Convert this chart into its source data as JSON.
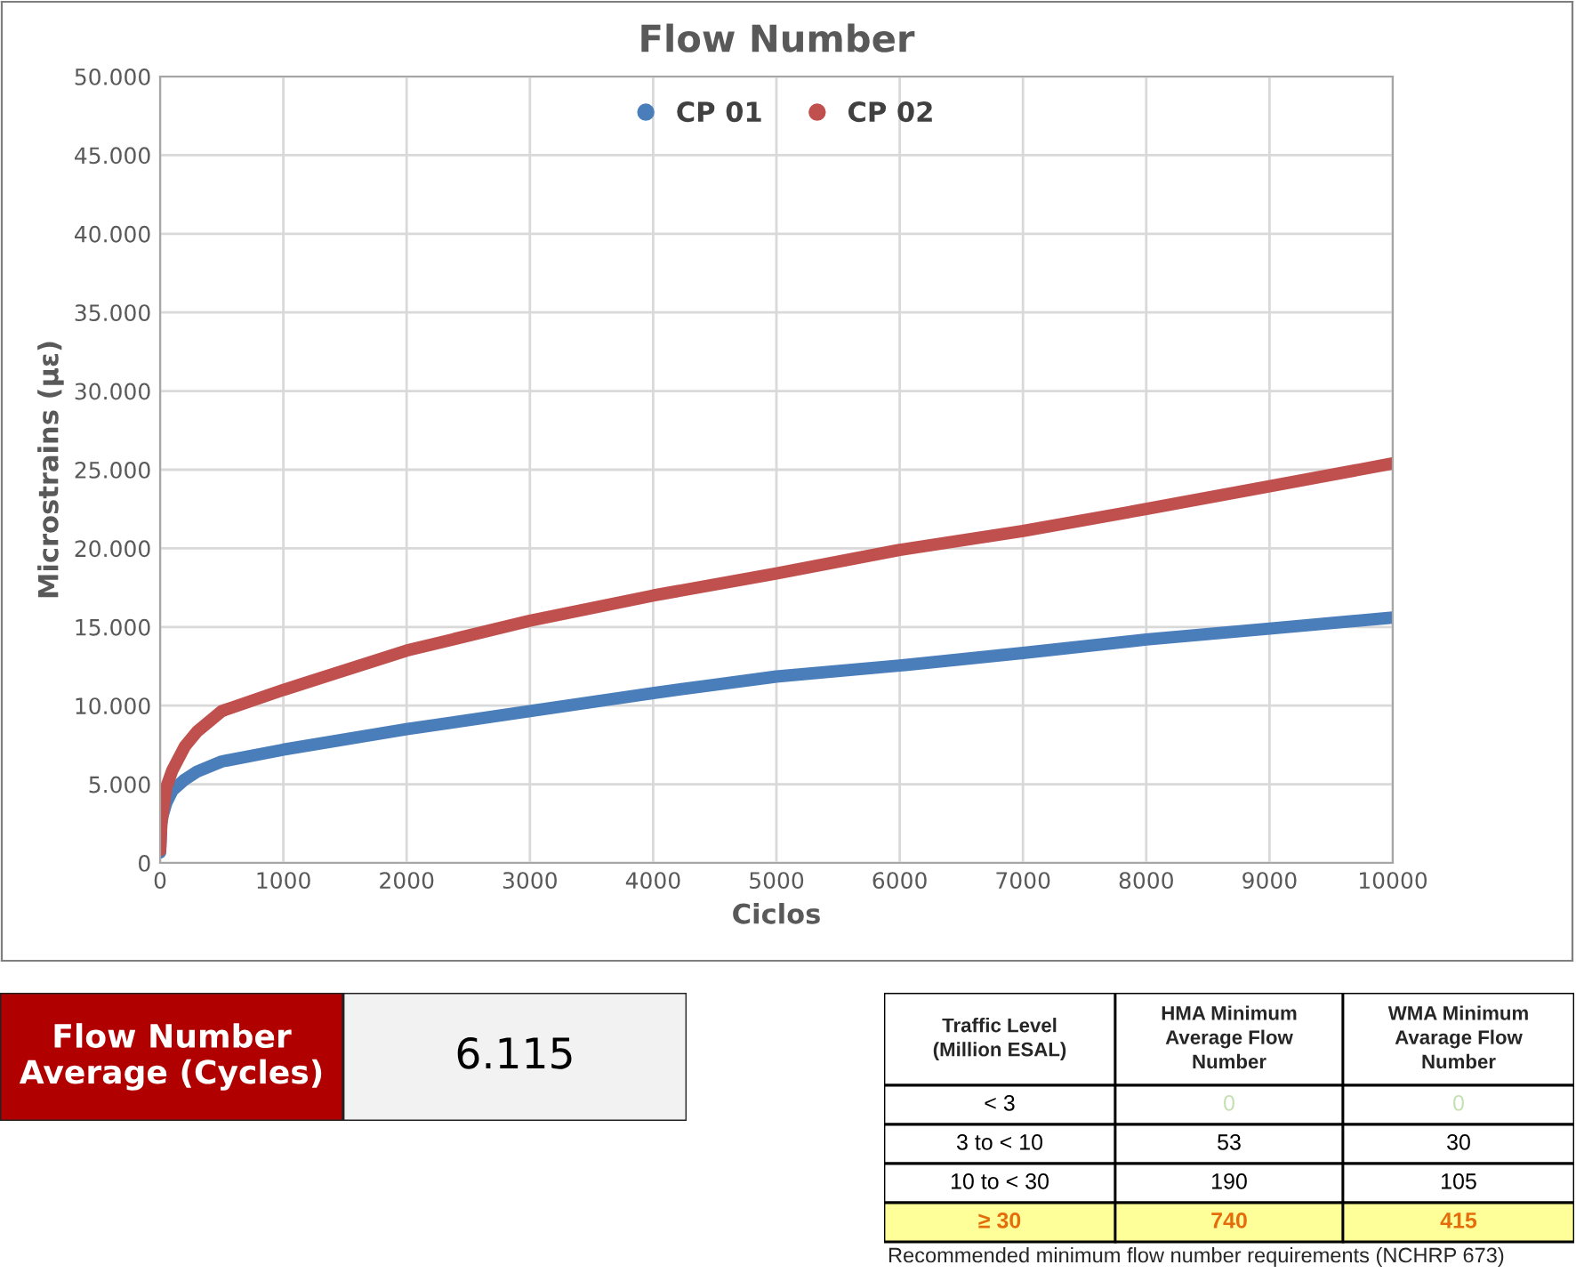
{
  "chart_data": [
    {
      "type": "line",
      "title": "Flow Number",
      "xlabel": "Ciclos",
      "ylabel": "Microstrains (με)",
      "xlim": [
        0,
        10000
      ],
      "xticks": [
        0,
        1000,
        2000,
        3000,
        4000,
        5000,
        6000,
        7000,
        8000,
        9000,
        10000
      ],
      "ylim": [
        0,
        50000
      ],
      "yticks": [
        0,
        {
          "value": 5000,
          "label": "5.000"
        },
        {
          "value": 10000,
          "label": "10.000"
        },
        {
          "value": 15000,
          "label": "15.000"
        },
        {
          "value": 20000,
          "label": "20.000"
        },
        {
          "value": 25000,
          "label": "25.000"
        },
        {
          "value": 30000,
          "label": "30.000"
        },
        {
          "value": 35000,
          "label": "35.000"
        },
        {
          "value": 40000,
          "label": "40.000"
        },
        {
          "value": 45000,
          "label": "45.000"
        },
        {
          "value": 50000,
          "label": "50.000"
        }
      ],
      "grid": true,
      "legend": "top",
      "series": [
        {
          "name": "CP 01",
          "color": "#4a7ebb",
          "x": [
            0,
            10,
            20,
            50,
            100,
            200,
            300,
            500,
            1000,
            2000,
            3000,
            4000,
            5000,
            6000,
            7000,
            8000,
            9000,
            10000
          ],
          "values": [
            650,
            2500,
            3000,
            3800,
            4600,
            5300,
            5800,
            6450,
            7200,
            8500,
            9650,
            10800,
            11850,
            12550,
            13350,
            14200,
            14900,
            15600
          ]
        },
        {
          "name": "CP 02",
          "color": "#c0504d",
          "x": [
            0,
            10,
            50,
            100,
            200,
            300,
            500,
            1000,
            2000,
            3000,
            4000,
            5000,
            6000,
            7000,
            8000,
            9000,
            10000
          ],
          "values": [
            800,
            2500,
            4800,
            5900,
            7400,
            8350,
            9650,
            11000,
            13500,
            15400,
            17000,
            18400,
            19900,
            21100,
            22500,
            23950,
            25400
          ]
        }
      ]
    },
    {
      "type": "other",
      "annotations": [
        "Flow Number Average (Cycles)",
        "6.115"
      ]
    },
    {
      "type": "other",
      "categories": [
        "Traffic Level (Million ESAL)",
        "HMA Minimum Average Flow Number",
        "WMA Minimum Avarage Flow Number"
      ],
      "cell_labels": [
        [
          "< 3",
          "0",
          "0"
        ],
        [
          "3 to < 10",
          "53",
          "30"
        ],
        [
          "10 to < 30",
          "190",
          "105"
        ],
        [
          "≥ 30",
          "740",
          "415"
        ]
      ],
      "annotations": [
        "Recommended minimum flow number requirements (NCHRP 673)"
      ]
    }
  ]
}
